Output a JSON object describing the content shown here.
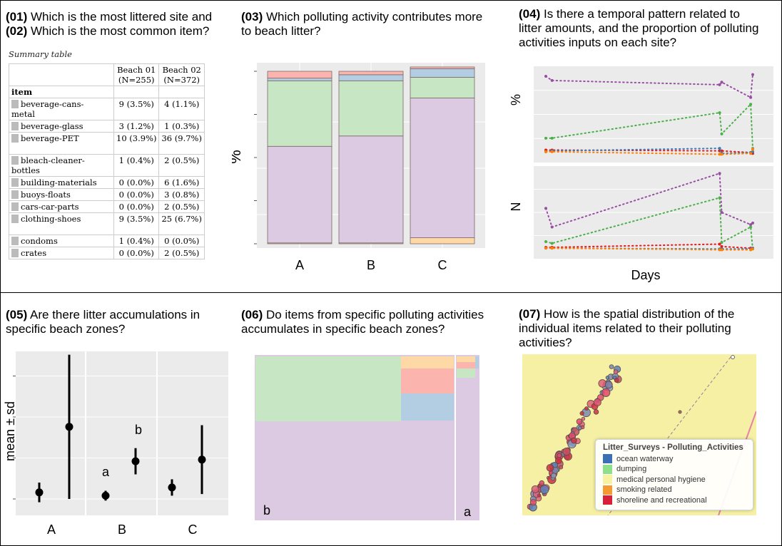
{
  "questions": {
    "q01": {
      "num": "(01)",
      "text": "Which is the most littered site and"
    },
    "q02": {
      "num": "(02)",
      "text": "Which is the most common item?"
    },
    "q03": {
      "num": "(03)",
      "text": "Which polluting activity  contributes more",
      "text2": "to beach litter?"
    },
    "q04": {
      "num": "(04)",
      "text": "Is there a temporal pattern related to",
      "text2": "litter amounts, and the proportion of polluting",
      "text3": "activities inputs on each site?"
    },
    "q05": {
      "num": "(05)",
      "text": "Are there litter accumulations in",
      "text2": "specific beach zones?"
    },
    "q06": {
      "num": "(06)",
      "text": "Do items from specific polluting activities",
      "text2": "accumulates in specific beach zones?"
    },
    "q07": {
      "num": "(07)",
      "text": "How is the spatial distribution of the",
      "text2": "individual items related to their polluting",
      "text3": "activities?"
    }
  },
  "summary_table": {
    "title": "Summary table",
    "col1": "Beach 01",
    "col1_n": "(N=255)",
    "col2": "Beach 02",
    "col2_n": "(N=372)",
    "group_header": "item",
    "rows": [
      {
        "item": "beverage-cans-",
        "item2": "metal",
        "b1": "9 (3.5%)",
        "b2": "4 (1.1%)"
      },
      {
        "item": "beverage-glass",
        "item2": "",
        "b1": "3 (1.2%)",
        "b2": "1 (0.3%)"
      },
      {
        "item": "beverage-PET",
        "item2": "",
        "b1": "10 (3.9%)",
        "b2": "36 (9.7%)"
      },
      {
        "item": "bleach-cleaner-",
        "item2": "bottles",
        "b1": "1 (0.4%)",
        "b2": "2 (0.5%)"
      },
      {
        "item": "building-materials",
        "item2": "",
        "b1": "0 (0.0%)",
        "b2": "6 (1.6%)"
      },
      {
        "item": "buoys-floats",
        "item2": "",
        "b1": "0 (0.0%)",
        "b2": "3 (0.8%)"
      },
      {
        "item": "cars-car-parts",
        "item2": "",
        "b1": "0 (0.0%)",
        "b2": "2 (0.5%)"
      },
      {
        "item": "clothing-shoes",
        "item2": "",
        "b1": "9 (3.5%)",
        "b2": "25 (6.7%)"
      },
      {
        "item": "condoms",
        "item2": "",
        "b1": "1 (0.4%)",
        "b2": "0 (0.0%)"
      },
      {
        "item": "crates",
        "item2": "",
        "b1": "0 (0.0%)",
        "b2": "2 (0.5%)"
      }
    ]
  },
  "colors": {
    "panel_bg": "#ebebeb",
    "lilac": "#dcc9e2",
    "green": "#c7e6c3",
    "blue": "#b3cde3",
    "pink": "#fbb4ae",
    "peach": "#fed9a6",
    "purple": "#984ea3",
    "dot_green": "#4daf4a",
    "dot_red": "#e41a1c",
    "dot_blue": "#377eb8",
    "dot_orange": "#ff7f00"
  },
  "chart_data": [
    {
      "type": "bar",
      "stacked": true,
      "categories": [
        "A",
        "B",
        "C"
      ],
      "ylabel": "%",
      "series": [
        {
          "values": [
            0.5,
            0.5,
            3.5
          ]
        },
        {
          "values": [
            56,
            62,
            81
          ]
        },
        {
          "values": [
            38,
            32,
            12
          ]
        },
        {
          "values": [
            1.5,
            3.5,
            5
          ]
        },
        {
          "values": [
            4,
            2,
            1
          ]
        }
      ]
    },
    {
      "type": "line",
      "xlabel": "Days",
      "panels": [
        {
          "ylabel": "%",
          "series": [
            {
              "x": [
                0,
                0.03,
                0.84,
                0.85,
                0.99,
                1.0
              ],
              "y": [
                0.95,
                0.9,
                0.85,
                0.88,
                0.7,
                0.97
              ]
            },
            {
              "x": [
                0,
                0.03,
                0.84,
                0.85,
                0.99,
                1.0
              ],
              "y": [
                0.22,
                0.22,
                0.52,
                0.27,
                0.62,
                0.1
              ]
            },
            {
              "x": [
                0,
                0.03,
                0.84,
                0.85,
                0.99,
                1.0
              ],
              "y": [
                0.08,
                0.08,
                0.07,
                0.07,
                0.05,
                0.04
              ]
            },
            {
              "x": [
                0,
                0.03,
                0.84,
                0.85,
                0.99,
                1.0
              ],
              "y": [
                0.06,
                0.07,
                0.1,
                0.04,
                0.05,
                0.06
              ]
            },
            {
              "x": [
                0,
                0.03,
                0.84,
                0.85,
                0.99,
                1.0
              ],
              "y": [
                0.06,
                0.06,
                0.03,
                0.03,
                0.04,
                0.09
              ]
            }
          ]
        },
        {
          "ylabel": "N",
          "series": [
            {
              "x": [
                0,
                0.03,
                0.84,
                0.85,
                0.99,
                1.0
              ],
              "y": [
                0.55,
                0.32,
                0.98,
                0.5,
                0.35,
                0.37
              ]
            },
            {
              "x": [
                0,
                0.03,
                0.84,
                0.85,
                0.99,
                1.0
              ],
              "y": [
                0.14,
                0.12,
                0.68,
                0.13,
                0.32,
                0.05
              ]
            },
            {
              "x": [
                0,
                0.03,
                0.84,
                0.85,
                0.99,
                1.0
              ],
              "y": [
                0.07,
                0.07,
                0.11,
                0.08,
                0.06,
                0.06
              ]
            },
            {
              "x": [
                0,
                0.03,
                0.84,
                0.85,
                0.99,
                1.0
              ],
              "y": [
                0.06,
                0.06,
                0.05,
                0.05,
                0.05,
                0.06
              ]
            },
            {
              "x": [
                0,
                0.03,
                0.84,
                0.85,
                0.99,
                1.0
              ],
              "y": [
                0.06,
                0.06,
                0.04,
                0.04,
                0.04,
                0.05
              ]
            }
          ]
        }
      ]
    },
    {
      "type": "scatter",
      "ylabel": "mean ± sd",
      "categories": [
        "A",
        "B",
        "C"
      ],
      "points": [
        {
          "zone": "A",
          "mean": 0.9,
          "sd": 0.6,
          "label": ""
        },
        {
          "zone": "A",
          "mean": 4.9,
          "sd": 4.4,
          "label": ""
        },
        {
          "zone": "B",
          "mean": 0.7,
          "sd": 0.3,
          "label": "a"
        },
        {
          "zone": "B",
          "mean": 2.8,
          "sd": 0.8,
          "label": "b"
        },
        {
          "zone": "C",
          "mean": 1.2,
          "sd": 0.5,
          "label": ""
        },
        {
          "zone": "C",
          "mean": 2.9,
          "sd": 2.1,
          "label": ""
        }
      ],
      "ylim": [
        -0.5,
        9.5
      ]
    },
    {
      "type": "heatmap",
      "subtype": "treemap",
      "labels": [
        "b",
        "a"
      ],
      "blocks": [
        {
          "group": "b",
          "color": "lilac",
          "share": 0.62
        },
        {
          "group": "b",
          "color": "green",
          "share": 0.26
        },
        {
          "group": "b",
          "color": "blue",
          "share": 0.05
        },
        {
          "group": "b",
          "color": "pink",
          "share": 0.05
        },
        {
          "group": "b",
          "color": "peach",
          "share": 0.02
        },
        {
          "group": "a",
          "color": "lilac",
          "share": 0.85
        },
        {
          "group": "a",
          "color": "green",
          "share": 0.06
        },
        {
          "group": "a",
          "color": "pink",
          "share": 0.03
        },
        {
          "group": "a",
          "color": "peach",
          "share": 0.03
        },
        {
          "group": "a",
          "color": "blue",
          "share": 0.03
        }
      ]
    }
  ],
  "chart_labels": {
    "c03_ylabel": "%",
    "c03_cats": [
      "A",
      "B",
      "C"
    ],
    "c04_ylabel_top": "%",
    "c04_ylabel_bottom": "N",
    "c04_xlabel": "Days",
    "c05_ylabel": "mean ± sd",
    "c05_cats": [
      "A",
      "B",
      "C"
    ],
    "c05_letter_a": "a",
    "c05_letter_b": "b",
    "c06_label_b": "b",
    "c06_label_a": "a"
  },
  "map_legend": {
    "title": "Litter_Surveys - Polluting_Activities",
    "items": [
      {
        "label": "ocean waterway",
        "color": "#3b6fb6"
      },
      {
        "label": "dumping",
        "color": "#8ee08a"
      },
      {
        "label": "medical personal hygiene",
        "color": "#f8f2a0"
      },
      {
        "label": "smoking related",
        "color": "#f59a30"
      },
      {
        "label": "shoreline and recreational",
        "color": "#d8203a"
      }
    ]
  }
}
